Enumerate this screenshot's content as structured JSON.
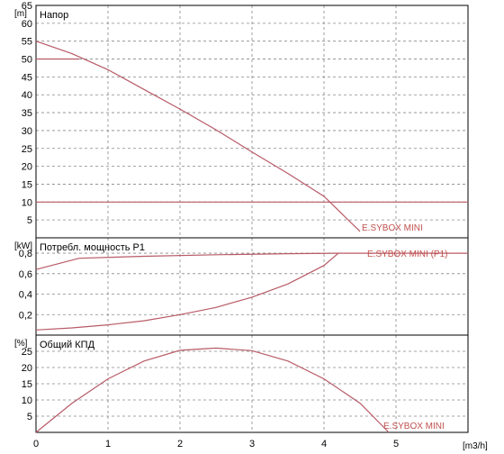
{
  "chart_data": {
    "type": "line",
    "x_unit": "[m3/h]",
    "xlim": [
      0,
      6
    ],
    "xticks": [
      0,
      1,
      2,
      3,
      4,
      5
    ],
    "colors": {
      "curve": "#b85a66",
      "label": "#c0504d",
      "grid": "#888888"
    },
    "panels": [
      {
        "title": "Напор",
        "unit": "[m]",
        "ylim": [
          0,
          65
        ],
        "yticks": [
          5,
          10,
          15,
          20,
          25,
          30,
          35,
          40,
          45,
          50,
          55,
          60,
          65
        ],
        "series": [
          {
            "name": "E.SYBOX MINI",
            "x": [
              0,
              0.5,
              1,
              1.5,
              2,
              2.5,
              3,
              3.5,
              4,
              4.5
            ],
            "y": [
              55,
              51.5,
              47,
              41.5,
              36,
              30.2,
              24,
              18,
              11.6,
              1.8
            ]
          },
          {
            "name": "",
            "x": [
              0,
              0.6
            ],
            "y": [
              50,
              50
            ]
          },
          {
            "name": "",
            "x": [
              0,
              6
            ],
            "y": [
              10,
              10
            ]
          }
        ]
      },
      {
        "title": "Потребл. мощность P1",
        "unit": "[kW]",
        "ylim": [
          0,
          0.95
        ],
        "yticks": [
          0.2,
          0.4,
          0.6,
          0.8
        ],
        "yticklabels": [
          "0,2",
          "0,4",
          "0,6",
          "0,8"
        ],
        "series": [
          {
            "name": "E.SYBOX MINI (P1)",
            "x": [
              0,
              0.6,
              1.5,
              2.5,
              3.5,
              4.2,
              6
            ],
            "y": [
              0.64,
              0.75,
              0.77,
              0.785,
              0.795,
              0.8,
              0.8
            ]
          },
          {
            "name": "",
            "x": [
              0,
              0.5,
              1,
              1.5,
              2,
              2.5,
              3,
              3.5,
              4,
              4.2
            ],
            "y": [
              0.05,
              0.07,
              0.1,
              0.14,
              0.2,
              0.27,
              0.37,
              0.5,
              0.68,
              0.8
            ]
          }
        ]
      },
      {
        "title": "Общий КПД",
        "unit": "[%]",
        "ylim": [
          0,
          30
        ],
        "yticks": [
          5,
          10,
          15,
          20,
          25
        ],
        "series": [
          {
            "name": "E.SYBOX MINI",
            "x": [
              0,
              0.5,
              1,
              1.5,
              2,
              2.5,
              3,
              3.5,
              4,
              4.5,
              4.9
            ],
            "y": [
              0,
              9,
              16.5,
              22,
              25.3,
              26,
              25.2,
              22,
              16.5,
              9,
              0
            ]
          }
        ]
      }
    ]
  }
}
